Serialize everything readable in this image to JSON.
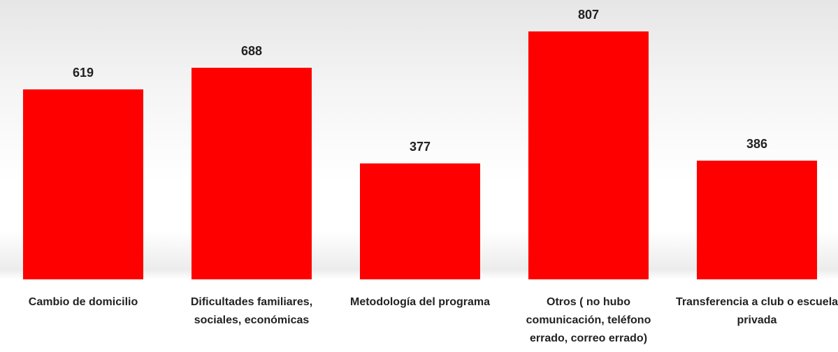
{
  "chart_data": {
    "type": "bar",
    "categories": [
      "Cambio de domicilio",
      "Dificultades familiares, sociales, económicas",
      "Metodología del programa",
      "Otros ( no hubo comunicación, teléfono errado, correo errado)",
      "Transferencia a club o escuela privada"
    ],
    "values": [
      619,
      688,
      377,
      807,
      386
    ],
    "color": "#ff0000"
  }
}
